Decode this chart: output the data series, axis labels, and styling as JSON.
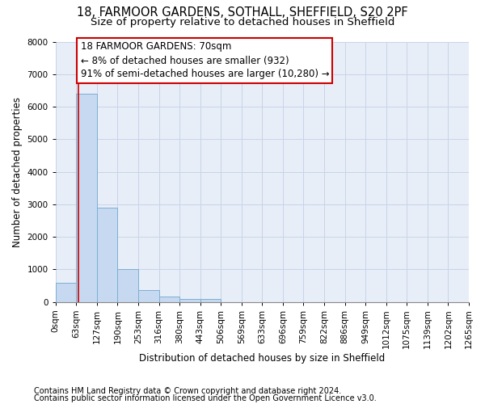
{
  "title": "18, FARMOOR GARDENS, SOTHALL, SHEFFIELD, S20 2PF",
  "subtitle": "Size of property relative to detached houses in Sheffield",
  "xlabel": "Distribution of detached houses by size in Sheffield",
  "ylabel": "Number of detached properties",
  "footnote1": "Contains HM Land Registry data © Crown copyright and database right 2024.",
  "footnote2": "Contains public sector information licensed under the Open Government Licence v3.0.",
  "bar_values": [
    600,
    6400,
    2900,
    1000,
    370,
    175,
    100,
    80,
    0,
    0,
    0,
    0,
    0,
    0,
    0,
    0,
    0,
    0,
    0,
    0
  ],
  "bin_labels": [
    "0sqm",
    "63sqm",
    "127sqm",
    "190sqm",
    "253sqm",
    "316sqm",
    "380sqm",
    "443sqm",
    "506sqm",
    "569sqm",
    "633sqm",
    "696sqm",
    "759sqm",
    "822sqm",
    "886sqm",
    "949sqm",
    "1012sqm",
    "1075sqm",
    "1139sqm",
    "1202sqm",
    "1265sqm"
  ],
  "bar_color": "#c6d9f0",
  "bar_edge_color": "#7bafd4",
  "grid_color": "#c8d4e8",
  "background_color": "#e8eef8",
  "annotation_text": "18 FARMOOR GARDENS: 70sqm\n← 8% of detached houses are smaller (932)\n91% of semi-detached houses are larger (10,280) →",
  "annotation_box_color": "#cc0000",
  "vline_color": "#cc0000",
  "ylim": [
    0,
    8000
  ],
  "yticks": [
    0,
    1000,
    2000,
    3000,
    4000,
    5000,
    6000,
    7000,
    8000
  ],
  "title_fontsize": 10.5,
  "subtitle_fontsize": 9.5,
  "axis_label_fontsize": 8.5,
  "tick_fontsize": 7.5,
  "annotation_fontsize": 8.5,
  "footnote_fontsize": 7
}
